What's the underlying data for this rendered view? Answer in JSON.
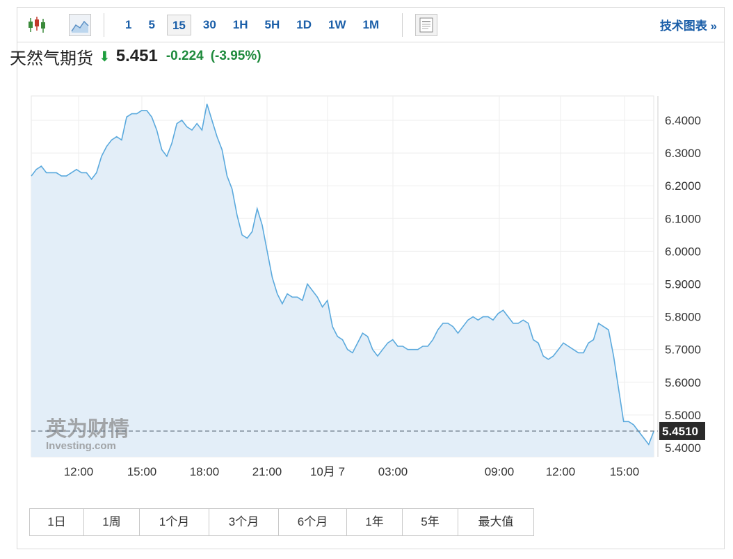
{
  "toolbar": {
    "intervals": [
      "1",
      "5",
      "15",
      "30",
      "1H",
      "5H",
      "1D",
      "1W",
      "1M"
    ],
    "active_interval": "15",
    "tech_chart_label": "技术图表 »",
    "icons": [
      "candlestick-icon",
      "area-chart-icon",
      "document-icon"
    ]
  },
  "header": {
    "name": "天然气期货",
    "price": "5.451",
    "change": "-0.224",
    "change_pct": "(-3.95%)"
  },
  "ranges": [
    "1日",
    "1周",
    "1个月",
    "3个月",
    "6个月",
    "1年",
    "5年",
    "最大值"
  ],
  "watermark": {
    "brand_cn": "英为财情",
    "brand_en": "Investing.com"
  },
  "colors": {
    "line": "#5aa9dd",
    "fill": "#e3eef8",
    "accent": "#1a5ea8",
    "down": "#1e8a3c"
  },
  "chart_data": {
    "type": "area",
    "title": "",
    "xlabel": "",
    "ylabel": "",
    "ylim": [
      5.38,
      6.48
    ],
    "x_ticks": [
      "12:00",
      "15:00",
      "18:00",
      "21:00",
      "10月 7",
      "03:00",
      "09:00",
      "12:00",
      "15:00"
    ],
    "y_ticks": [
      "6.4000",
      "6.3000",
      "6.2000",
      "6.1000",
      "6.0000",
      "5.9000",
      "5.8000",
      "5.7000",
      "5.6000",
      "5.5000",
      "5.4000"
    ],
    "last_price_label": "5.4510",
    "last_price": 5.451,
    "values": [
      6.23,
      6.25,
      6.26,
      6.24,
      6.24,
      6.24,
      6.23,
      6.23,
      6.24,
      6.25,
      6.24,
      6.24,
      6.22,
      6.24,
      6.29,
      6.32,
      6.34,
      6.35,
      6.34,
      6.41,
      6.42,
      6.42,
      6.43,
      6.43,
      6.41,
      6.37,
      6.31,
      6.29,
      6.33,
      6.39,
      6.4,
      6.38,
      6.37,
      6.39,
      6.37,
      6.45,
      6.4,
      6.35,
      6.31,
      6.23,
      6.19,
      6.11,
      6.05,
      6.04,
      6.06,
      6.13,
      6.08,
      6.0,
      5.92,
      5.87,
      5.84,
      5.87,
      5.86,
      5.86,
      5.85,
      5.9,
      5.88,
      5.86,
      5.83,
      5.85,
      5.77,
      5.74,
      5.73,
      5.7,
      5.69,
      5.72,
      5.75,
      5.74,
      5.7,
      5.68,
      5.7,
      5.72,
      5.73,
      5.71,
      5.71,
      5.7,
      5.7,
      5.7,
      5.71,
      5.71,
      5.73,
      5.76,
      5.78,
      5.78,
      5.77,
      5.75,
      5.77,
      5.79,
      5.8,
      5.79,
      5.8,
      5.8,
      5.79,
      5.81,
      5.82,
      5.8,
      5.78,
      5.78,
      5.79,
      5.78,
      5.73,
      5.72,
      5.68,
      5.67,
      5.68,
      5.7,
      5.72,
      5.71,
      5.7,
      5.69,
      5.69,
      5.72,
      5.73,
      5.78,
      5.77,
      5.76,
      5.68,
      5.58,
      5.48,
      5.48,
      5.47,
      5.45,
      5.43,
      5.41,
      5.45
    ]
  }
}
